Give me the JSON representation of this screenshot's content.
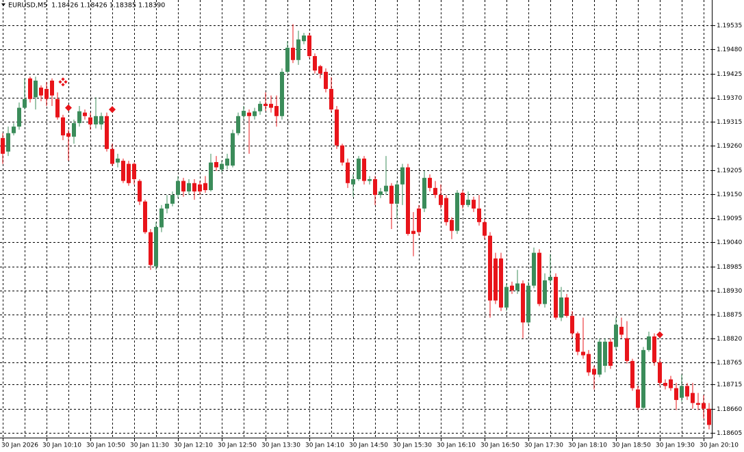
{
  "chart_data": {
    "type": "candlestick",
    "title": "EURUSD,M5",
    "header_quote": "1.18426 1.18426 1.18385 1.18390",
    "bull_color": "#3b8c5a",
    "bear_color": "#e8141a",
    "grid": true,
    "ylim": [
      1.18594,
      1.19593
    ],
    "yticks": [
      1.19535,
      {
        "value": 1.1948,
        "label": "1.19480"
      },
      1.19425,
      {
        "value": 1.1937,
        "label": "1.19370"
      },
      1.19315,
      {
        "value": 1.1926,
        "label": "1.19260"
      },
      1.19205,
      {
        "value": 1.1915,
        "label": "1.19150"
      },
      1.19095,
      {
        "value": 1.1904,
        "label": "1.19040"
      },
      1.18985,
      {
        "value": 1.1893,
        "label": "1.18930"
      },
      1.18875,
      {
        "value": 1.1882,
        "label": "1.18820"
      },
      1.18765,
      1.18715,
      {
        "value": 1.1866,
        "label": "1.18660"
      },
      1.18605
    ],
    "categories": [
      "30 Jan 2026",
      null,
      null,
      null,
      null,
      null,
      null,
      null,
      "30 Jan 10:10",
      null,
      null,
      null,
      null,
      null,
      null,
      null,
      "30 Jan 10:50",
      null,
      null,
      null,
      null,
      null,
      null,
      null,
      "30 Jan 11:30",
      null,
      null,
      null,
      null,
      null,
      null,
      null,
      "30 Jan 12:10",
      null,
      null,
      null,
      null,
      null,
      null,
      null,
      "30 Jan 12:50",
      null,
      null,
      null,
      null,
      null,
      null,
      null,
      "30 Jan 13:30",
      null,
      null,
      null,
      null,
      null,
      null,
      null,
      "30 Jan 14:10",
      null,
      null,
      null,
      null,
      null,
      null,
      null,
      "30 Jan 14:50",
      null,
      null,
      null,
      null,
      null,
      null,
      null,
      "30 Jan 15:30",
      null,
      null,
      null,
      null,
      null,
      null,
      null,
      "30 Jan 16:10",
      null,
      null,
      null,
      null,
      null,
      null,
      null,
      "30 Jan 16:50",
      null,
      null,
      null,
      null,
      null,
      null,
      null,
      "30 Jan 17:30",
      null,
      null,
      null,
      null,
      null,
      null,
      null,
      "30 Jan 18:10",
      null,
      null,
      null,
      null,
      null,
      null,
      null,
      "30 Jan 18:50",
      null,
      null,
      null,
      null,
      null,
      null,
      null,
      "30 Jan 19:30",
      null,
      null,
      null,
      null,
      null,
      null,
      null,
      "30 Jan 20:10",
      null
    ],
    "open": [
      1.19278,
      1.19247,
      1.19289,
      1.19304,
      1.19347,
      1.19414,
      1.19371,
      1.19393,
      1.1939,
      1.19409,
      1.19367,
      1.19325,
      1.19289,
      1.19281,
      1.19312,
      1.19336,
      1.19325,
      1.19309,
      1.19309,
      1.19328,
      1.19253,
      1.19222,
      1.19226,
      1.19219,
      1.19219,
      1.1918,
      1.19133,
      1.19063,
      1.18985,
      1.19074,
      1.19117,
      1.19128,
      1.19148,
      1.1918,
      1.19156,
      1.19175,
      1.19172,
      1.19175,
      1.19159,
      1.19223,
      1.19206,
      1.19215,
      1.19215,
      1.19289,
      1.19328,
      1.19336,
      1.19328,
      1.19339,
      1.19356,
      1.19356,
      1.19351,
      1.19328,
      1.19429,
      1.19484,
      1.19456,
      1.19499,
      1.19512,
      1.19465,
      1.19442,
      1.19429,
      1.1939,
      1.19343,
      1.19261,
      1.19222,
      1.19172,
      1.19184,
      1.19231,
      1.1918,
      1.19184,
      1.19148,
      1.19156,
      1.19169,
      1.19128,
      1.19172,
      1.19211,
      1.19066,
      1.19117,
      1.19117,
      1.19187,
      1.19164,
      1.19148,
      1.19141,
      1.19091,
      1.19066,
      1.19153,
      1.19125,
      1.19137,
      1.19117,
      1.19086,
      1.19055,
      1.19003,
      1.19003,
      1.18891,
      1.18941,
      1.1893,
      1.18946,
      1.18857,
      1.18941,
      1.19016,
      1.18899,
      1.18953,
      1.18961,
      1.18868,
      1.18914,
      1.18872,
      1.18832,
      1.1879,
      1.18785,
      1.18751,
      1.18738,
      1.18758,
      1.18813,
      1.18801,
      1.18847,
      1.18821,
      1.18769,
      1.18704,
      1.18662,
      1.18794,
      1.18825,
      1.18766,
      1.18719,
      1.18727,
      1.18707,
      1.18685,
      1.18712,
      1.18696,
      1.18673,
      1.18673,
      1.1866
    ],
    "high": [
      1.19289,
      1.19304,
      1.19312,
      1.19359,
      1.19414,
      1.19418,
      1.19418,
      1.19398,
      1.19406,
      1.19414,
      1.19382,
      1.19331,
      1.19297,
      1.1932,
      1.19351,
      1.19343,
      1.19336,
      1.19371,
      1.19336,
      1.19336,
      1.19265,
      1.19242,
      1.19231,
      1.19226,
      1.19222,
      1.19184,
      1.19137,
      1.1907,
      1.19086,
      1.19125,
      1.19148,
      1.19156,
      1.19191,
      1.19187,
      1.19184,
      1.19184,
      1.1918,
      1.19191,
      1.19242,
      1.19237,
      1.19226,
      1.19242,
      1.19297,
      1.19336,
      1.19351,
      1.19343,
      1.19347,
      1.19362,
      1.19382,
      1.19375,
      1.19375,
      1.19437,
      1.19499,
      1.19538,
      1.19523,
      1.19518,
      1.19518,
      1.19471,
      1.19445,
      1.19437,
      1.19417,
      1.19351,
      1.19265,
      1.19231,
      1.19195,
      1.19237,
      1.19237,
      1.19191,
      1.19191,
      1.19164,
      1.19237,
      1.19175,
      1.1918,
      1.19219,
      1.19219,
      1.19109,
      1.19125,
      1.19203,
      1.19195,
      1.1918,
      1.19172,
      1.19148,
      1.19097,
      1.19159,
      1.19159,
      1.19156,
      1.19144,
      1.19148,
      1.19094,
      1.19063,
      1.19016,
      1.19016,
      1.18946,
      1.1895,
      1.18977,
      1.18953,
      1.1895,
      1.19028,
      1.19024,
      1.18969,
      1.19013,
      1.18969,
      1.18938,
      1.18922,
      1.18883,
      1.18836,
      1.18868,
      1.18794,
      1.18758,
      1.18821,
      1.18821,
      1.18821,
      1.18868,
      1.18868,
      1.1886,
      1.18774,
      1.18712,
      1.18801,
      1.18836,
      1.18832,
      1.18774,
      1.18727,
      1.18735,
      1.18719,
      1.18738,
      1.18719,
      1.18719,
      1.18696,
      1.18691,
      1.18673
    ],
    "low": [
      1.19219,
      1.19237,
      1.19284,
      1.19297,
      1.19343,
      1.19359,
      1.19343,
      1.19362,
      1.19351,
      1.19351,
      1.1932,
      1.19273,
      1.19226,
      1.19265,
      1.19304,
      1.1932,
      1.19297,
      1.193,
      1.19297,
      1.19247,
      1.19214,
      1.19211,
      1.19175,
      1.19169,
      1.19172,
      1.19125,
      1.19059,
      1.18977,
      1.18977,
      1.19063,
      1.19106,
      1.19122,
      1.19141,
      1.19144,
      1.19148,
      1.19137,
      1.19148,
      1.19153,
      1.19156,
      1.19203,
      1.192,
      1.19206,
      1.19211,
      1.19284,
      1.1932,
      1.19242,
      1.1932,
      1.19331,
      1.1934,
      1.19336,
      1.19304,
      1.1932,
      1.19425,
      1.19449,
      1.19445,
      1.19492,
      1.1946,
      1.19425,
      1.19414,
      1.19382,
      1.19336,
      1.19253,
      1.19215,
      1.19164,
      1.19144,
      1.1918,
      1.19172,
      1.19172,
      1.19125,
      1.19141,
      1.19148,
      1.1907,
      1.19094,
      1.19125,
      1.19055,
      1.19008,
      1.19055,
      1.19109,
      1.19156,
      1.19141,
      1.19117,
      1.19078,
      1.19047,
      1.19059,
      1.19117,
      1.1912,
      1.19109,
      1.19078,
      1.19047,
      1.18868,
      1.18899,
      1.18883,
      1.18883,
      1.18922,
      1.18922,
      1.18821,
      1.18852,
      1.18935,
      1.18894,
      1.18891,
      1.18946,
      1.18863,
      1.1886,
      1.18868,
      1.18821,
      1.18782,
      1.18774,
      1.18735,
      1.18704,
      1.18732,
      1.18743,
      1.18751,
      1.18794,
      1.18821,
      1.18763,
      1.18701,
      1.18657,
      1.18657,
      1.1879,
      1.18758,
      1.18712,
      1.18704,
      1.18701,
      1.18657,
      1.18676,
      1.1868,
      1.1866,
      1.18657,
      1.18638,
      1.18613
    ],
    "close": [
      1.19242,
      1.19289,
      1.19304,
      1.19347,
      1.19367,
      1.19367,
      1.19409,
      1.19375,
      1.19367,
      1.19375,
      1.19325,
      1.19284,
      1.19281,
      1.19312,
      1.19339,
      1.19328,
      1.19309,
      1.19328,
      1.19328,
      1.19253,
      1.19219,
      1.19231,
      1.1918,
      1.19175,
      1.19184,
      1.19133,
      1.19063,
      1.18988,
      1.19075,
      1.19117,
      1.19128,
      1.19148,
      1.1918,
      1.19156,
      1.19175,
      1.19156,
      1.19156,
      1.19159,
      1.19222,
      1.19211,
      1.19219,
      1.19231,
      1.19289,
      1.19328,
      1.1934,
      1.19328,
      1.19339,
      1.19356,
      1.19351,
      1.19347,
      1.19328,
      1.19429,
      1.19484,
      1.19456,
      1.19503,
      1.19512,
      1.19465,
      1.19432,
      1.19425,
      1.1939,
      1.19343,
      1.19261,
      1.19222,
      1.19175,
      1.19184,
      1.19231,
      1.1918,
      1.19184,
      1.19148,
      1.19156,
      1.19169,
      1.19128,
      1.19172,
      1.19211,
      1.19059,
      1.19059,
      1.19063,
      1.19187,
      1.19164,
      1.19148,
      1.19125,
      1.19086,
      1.19066,
      1.19153,
      1.19125,
      1.19137,
      1.19117,
      1.19086,
      1.19055,
      1.18907,
      1.18907,
      1.18891,
      1.18938,
      1.1893,
      1.18946,
      1.18857,
      1.18941,
      1.19016,
      1.18899,
      1.18953,
      1.18961,
      1.18868,
      1.18914,
      1.18872,
      1.18832,
      1.1879,
      1.18782,
      1.18743,
      1.18738,
      1.18813,
      1.18813,
      1.18758,
      1.18852,
      1.18829,
      1.18769,
      1.18707,
      1.18662,
      1.18794,
      1.18825,
      1.18766,
      1.18719,
      1.18712,
      1.18707,
      1.1868,
      1.18712,
      1.18688,
      1.18673,
      1.18669,
      1.1866,
      1.18623
    ],
    "marker_color": "#e8141a",
    "markers": [
      {
        "bar": 11,
        "price": 1.19406,
        "shape": "cluster"
      },
      {
        "bar": 12,
        "price": 1.19347,
        "shape": "diamond"
      },
      {
        "bar": 20,
        "price": 1.19343,
        "shape": "diamond"
      },
      {
        "bar": 120,
        "price": 1.18829,
        "shape": "diamond"
      }
    ]
  }
}
